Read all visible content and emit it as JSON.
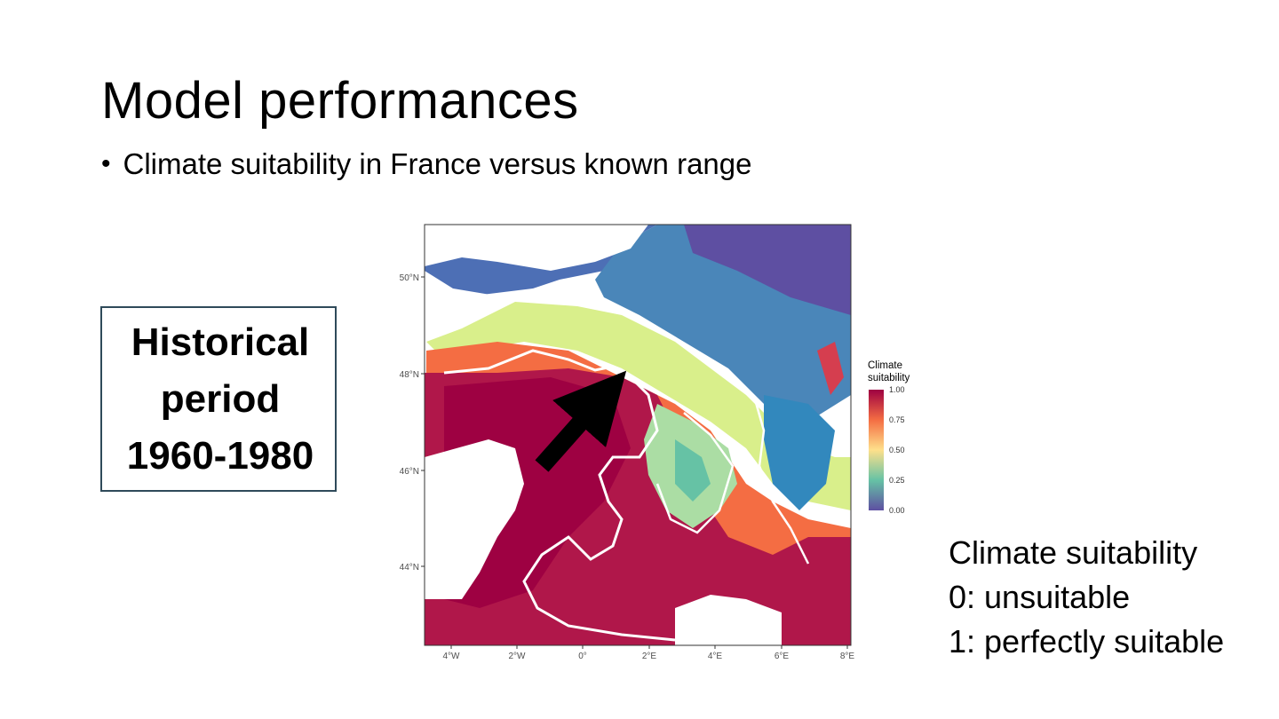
{
  "slide": {
    "title": "Model performances",
    "bullet": "Climate suitability in France versus known range"
  },
  "period_box": {
    "line1": "Historical",
    "line2": "period",
    "line3": "1960-1980"
  },
  "map": {
    "lat_labels": [
      "50°N",
      "48°N",
      "46°N",
      "44°N"
    ],
    "lon_labels": [
      "4°W",
      "2°W",
      "0°",
      "2°E",
      "4°E",
      "6°E",
      "8°E"
    ],
    "legend": {
      "title_line1": "Climate",
      "title_line2": "suitability",
      "ticks": [
        "1.00",
        "0.75",
        "0.50",
        "0.25",
        "0.00"
      ],
      "colors": [
        "#9e0142",
        "#f46d43",
        "#fee08b",
        "#66c2a5",
        "#5e4fa2"
      ]
    }
  },
  "explanation": {
    "line1": "Climate suitability",
    "line2": "0: unsuitable",
    "line3": "1: perfectly suitable"
  }
}
